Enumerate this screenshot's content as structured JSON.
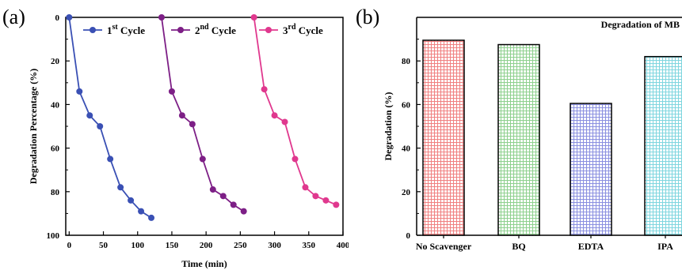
{
  "chart_data": [
    {
      "panel": "(a)",
      "type": "line",
      "xlabel": "Time (min)",
      "ylabel": "Degradation Percentage (%)",
      "xlim": [
        -5,
        400
      ],
      "ylim": [
        0,
        100
      ],
      "y_inverted": true,
      "xticks": [
        0,
        50,
        100,
        150,
        200,
        250,
        300,
        350,
        400
      ],
      "yticks": [
        0,
        20,
        40,
        60,
        80,
        100
      ],
      "legend_position": "top",
      "series": [
        {
          "name": "1st Cycle",
          "name_base": "1",
          "name_sup": "st",
          "name_rest": " Cycle",
          "color": "#3a50b4",
          "x": [
            0,
            15,
            30,
            45,
            60,
            75,
            90,
            105,
            120
          ],
          "y": [
            0,
            34,
            45,
            50,
            65,
            78,
            84,
            89,
            92
          ]
        },
        {
          "name": "2nd Cycle",
          "name_base": "2",
          "name_sup": "nd",
          "name_rest": " Cycle",
          "color": "#7d1f86",
          "x": [
            135,
            150,
            165,
            180,
            195,
            210,
            225,
            240,
            255
          ],
          "y": [
            0,
            34,
            45,
            49,
            65,
            79,
            82,
            86,
            89
          ]
        },
        {
          "name": "3rd Cycle",
          "name_base": "3",
          "name_sup": "rd",
          "name_rest": " Cycle",
          "color": "#e0388e",
          "x": [
            270,
            285,
            300,
            315,
            330,
            345,
            360,
            375,
            390
          ],
          "y": [
            0,
            33,
            45,
            48,
            65,
            78,
            82,
            84,
            86
          ]
        }
      ]
    },
    {
      "panel": "(b)",
      "type": "bar",
      "title": "Degradation of MB",
      "ylabel": "Degradation (%)",
      "ylim": [
        0,
        100
      ],
      "yticks": [
        0,
        20,
        40,
        60,
        80
      ],
      "categories": [
        "No Scavenger",
        "BQ",
        "EDTA",
        "IPA"
      ],
      "values": [
        89.5,
        87.5,
        60.5,
        82
      ],
      "colors": [
        "#f08080",
        "#8ed08e",
        "#8a8fe0",
        "#7fd6df"
      ]
    }
  ]
}
